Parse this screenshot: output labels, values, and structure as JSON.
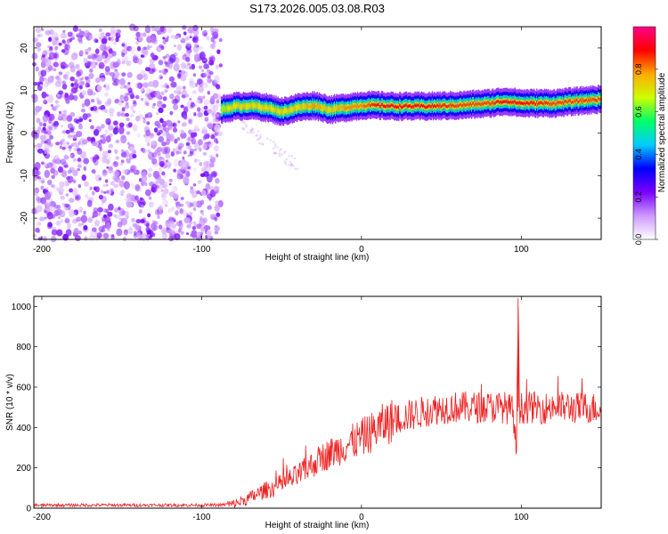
{
  "figure_title": "S173.2026.005.03.08.R03",
  "chart_data": [
    {
      "type": "heatmap",
      "title": "S173.2026.005.03.08.R03",
      "xlabel": "Height of straight line (km)",
      "ylabel": "Frequency (Hz)",
      "xlim": [
        -205,
        150
      ],
      "ylim": [
        -25,
        25
      ],
      "xticks": [
        -200,
        -100,
        0,
        100
      ],
      "yticks": [
        -20,
        -10,
        0,
        10,
        20
      ],
      "colorbar": {
        "label": "Normalized spectral amplitude",
        "range": [
          0,
          1
        ],
        "ticks": [
          0.0,
          0.2,
          0.4,
          0.6,
          0.8
        ],
        "colormap": [
          "#ffffff",
          "#cc99ff",
          "#7a00ff",
          "#0000ff",
          "#00ccff",
          "#00ff66",
          "#ccff00",
          "#ffaa00",
          "#ff0000",
          "#ff0088"
        ]
      },
      "noise_region": {
        "x_from": -205,
        "x_to": -88,
        "y_from": -25,
        "y_to": 25,
        "typical_amplitude": 0.1
      },
      "signal_ridge": {
        "x": [
          -88,
          -80,
          -70,
          -60,
          -50,
          -40,
          -30,
          -20,
          -10,
          0,
          10,
          20,
          40,
          60,
          80,
          90,
          100,
          120,
          150
        ],
        "frequency_hz": [
          5.5,
          6.2,
          6.5,
          6.0,
          5.0,
          6.0,
          6.5,
          5.5,
          6.0,
          6.5,
          6.5,
          6.3,
          6.3,
          6.5,
          7.0,
          7.5,
          7.0,
          7.0,
          8.0
        ],
        "amplitude": [
          0.6,
          0.7,
          0.7,
          0.7,
          0.7,
          0.7,
          0.8,
          0.7,
          0.8,
          0.8,
          0.9,
          0.9,
          0.9,
          0.85,
          0.85,
          0.9,
          0.9,
          0.85,
          0.85
        ]
      }
    },
    {
      "type": "line",
      "title": "",
      "xlabel": "Height of straight line (km)",
      "ylabel": "SNR (10 * v/v)",
      "xlim": [
        -205,
        150
      ],
      "ylim": [
        0,
        1050
      ],
      "xticks": [
        -200,
        -100,
        0,
        100
      ],
      "yticks": [
        0,
        200,
        400,
        600,
        800,
        1000
      ],
      "series": [
        {
          "name": "SNR",
          "color": "#ee2222",
          "x": [
            -205,
            -180,
            -150,
            -120,
            -100,
            -90,
            -80,
            -75,
            -70,
            -65,
            -60,
            -55,
            -50,
            -45,
            -40,
            -35,
            -30,
            -25,
            -20,
            -15,
            -10,
            -5,
            0,
            5,
            10,
            15,
            20,
            25,
            30,
            35,
            40,
            45,
            50,
            55,
            60,
            65,
            70,
            75,
            80,
            85,
            90,
            95,
            97,
            98,
            99,
            100,
            105,
            110,
            115,
            120,
            125,
            130,
            135,
            140,
            145,
            150
          ],
          "y": [
            15,
            15,
            15,
            15,
            15,
            15,
            20,
            35,
            50,
            70,
            90,
            100,
            120,
            140,
            160,
            190,
            220,
            250,
            270,
            290,
            310,
            330,
            350,
            370,
            395,
            420,
            435,
            450,
            460,
            470,
            480,
            490,
            495,
            500,
            500,
            500,
            500,
            500,
            500,
            500,
            500,
            480,
            260,
            1040,
            500,
            495,
            500,
            500,
            495,
            505,
            500,
            500,
            495,
            500,
            495,
            500
          ]
        }
      ]
    }
  ]
}
